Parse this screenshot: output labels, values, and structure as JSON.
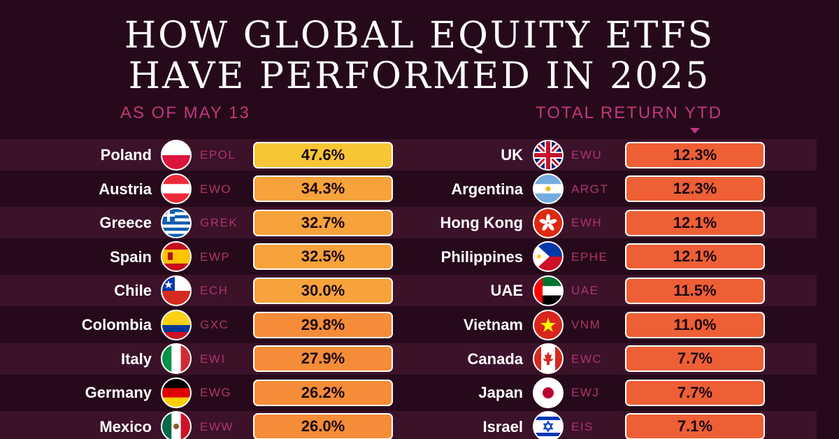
{
  "title_line1": "HOW GLOBAL EQUITY ETFS",
  "title_line2": "HAVE PERFORMED IN 2025",
  "subtitle_left": "AS OF MAY 13",
  "subtitle_right": "TOTAL RETURN YTD",
  "colors": {
    "background": "#260a1b",
    "band": "#3b1229",
    "accent": "#c1377e",
    "bar_top": "#f7c634",
    "bar_high": "#f7a23a",
    "bar_mid": "#f58c38",
    "bar_low": "#ee5f35"
  },
  "chart_data": {
    "type": "table",
    "title": "HOW GLOBAL EQUITY ETFS HAVE PERFORMED IN 2025",
    "subtitle": "AS OF MAY 13",
    "value_label": "TOTAL RETURN YTD",
    "left": [
      {
        "country": "Poland",
        "ticker": "EPOL",
        "value": 47.6,
        "label": "47.6%",
        "flag": "poland-flag-icon"
      },
      {
        "country": "Austria",
        "ticker": "EWO",
        "value": 34.3,
        "label": "34.3%",
        "flag": "austria-flag-icon"
      },
      {
        "country": "Greece",
        "ticker": "GREK",
        "value": 32.7,
        "label": "32.7%",
        "flag": "greece-flag-icon"
      },
      {
        "country": "Spain",
        "ticker": "EWP",
        "value": 32.5,
        "label": "32.5%",
        "flag": "spain-flag-icon"
      },
      {
        "country": "Chile",
        "ticker": "ECH",
        "value": 30.0,
        "label": "30.0%",
        "flag": "chile-flag-icon"
      },
      {
        "country": "Colombia",
        "ticker": "GXC",
        "value": 29.8,
        "label": "29.8%",
        "flag": "colombia-flag-icon"
      },
      {
        "country": "Italy",
        "ticker": "EWI",
        "value": 27.9,
        "label": "27.9%",
        "flag": "italy-flag-icon"
      },
      {
        "country": "Germany",
        "ticker": "EWG",
        "value": 26.2,
        "label": "26.2%",
        "flag": "germany-flag-icon"
      },
      {
        "country": "Mexico",
        "ticker": "EWW",
        "value": 26.0,
        "label": "26.0%",
        "flag": "mexico-flag-icon"
      }
    ],
    "right": [
      {
        "country": "UK",
        "ticker": "EWU",
        "value": 12.3,
        "label": "12.3%",
        "flag": "uk-flag-icon"
      },
      {
        "country": "Argentina",
        "ticker": "ARGT",
        "value": 12.3,
        "label": "12.3%",
        "flag": "argentina-flag-icon"
      },
      {
        "country": "Hong Kong",
        "ticker": "EWH",
        "value": 12.1,
        "label": "12.1%",
        "flag": "hong-kong-flag-icon"
      },
      {
        "country": "Philippines",
        "ticker": "EPHE",
        "value": 12.1,
        "label": "12.1%",
        "flag": "philippines-flag-icon"
      },
      {
        "country": "UAE",
        "ticker": "UAE",
        "value": 11.5,
        "label": "11.5%",
        "flag": "uae-flag-icon"
      },
      {
        "country": "Vietnam",
        "ticker": "VNM",
        "value": 11.0,
        "label": "11.0%",
        "flag": "vietnam-flag-icon"
      },
      {
        "country": "Canada",
        "ticker": "EWC",
        "value": 7.7,
        "label": "7.7%",
        "flag": "canada-flag-icon"
      },
      {
        "country": "Japan",
        "ticker": "EWJ",
        "value": 7.7,
        "label": "7.7%",
        "flag": "japan-flag-icon"
      },
      {
        "country": "Israel",
        "ticker": "EIS",
        "value": 7.1,
        "label": "7.1%",
        "flag": "israel-flag-icon"
      }
    ]
  }
}
